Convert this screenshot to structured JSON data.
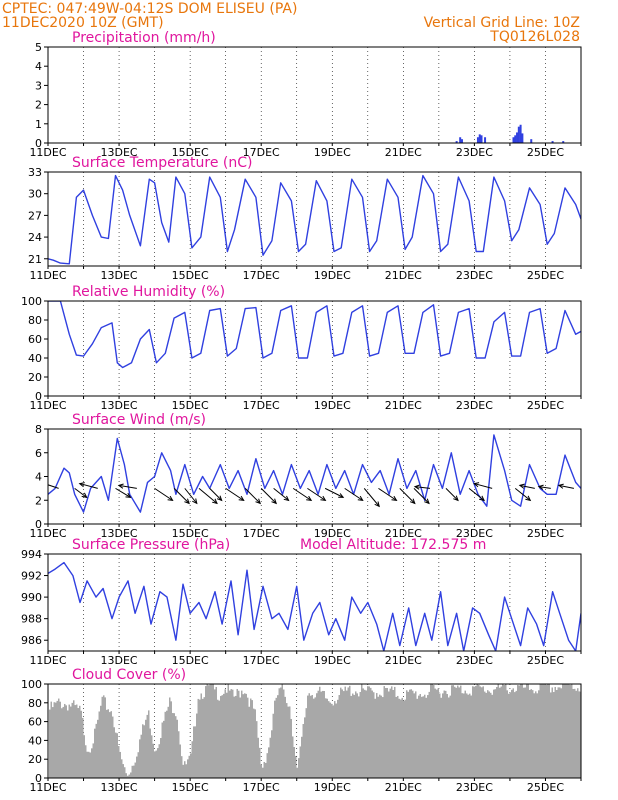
{
  "header": {
    "line1": "CPTEC:   047:49W-04:12S   DOM ELISEU (PA)",
    "line2": "11DEC2020 10Z (GMT)",
    "right1": "Vertical Grid Line: 10Z",
    "right2": "TQ0126L028"
  },
  "colors": {
    "header": "#e8760c",
    "title": "#e0169e",
    "line": "#3040e0",
    "cloud": "#a8a8a8",
    "grid": "#000000"
  },
  "chart_data": [
    {
      "type": "bar",
      "title": "Precipitation (mm/h)",
      "ylim": [
        0,
        5
      ],
      "yticks": [
        0,
        1,
        2,
        3,
        4,
        5
      ],
      "xlabels": [
        "11DEC",
        "13DEC",
        "15DEC",
        "17DEC",
        "19DEC",
        "21DEC",
        "23DEC",
        "25DEC"
      ],
      "x_start": "2020-12-11T10Z",
      "x_end": "2020-12-26T00Z",
      "grid": "dotted vertical lines at 10Z daily",
      "bars": [
        {
          "day": 11.0,
          "value": 0.02
        },
        {
          "day": 22.5,
          "value": 0.1
        },
        {
          "day": 22.6,
          "value": 0.3
        },
        {
          "day": 22.65,
          "value": 0.2
        },
        {
          "day": 23.1,
          "value": 0.3
        },
        {
          "day": 23.15,
          "value": 0.45
        },
        {
          "day": 23.2,
          "value": 0.4
        },
        {
          "day": 23.3,
          "value": 0.3
        },
        {
          "day": 24.1,
          "value": 0.3
        },
        {
          "day": 24.15,
          "value": 0.4
        },
        {
          "day": 24.2,
          "value": 0.55
        },
        {
          "day": 24.25,
          "value": 0.85
        },
        {
          "day": 24.3,
          "value": 0.95
        },
        {
          "day": 24.35,
          "value": 0.5
        },
        {
          "day": 24.6,
          "value": 0.2
        },
        {
          "day": 25.2,
          "value": 0.1
        },
        {
          "day": 25.5,
          "value": 0.1
        }
      ]
    },
    {
      "type": "line",
      "title": "Surface Temperature (nC)",
      "ylim": [
        20,
        33
      ],
      "yticks": [
        21,
        24,
        27,
        30,
        33
      ],
      "xlabels": [
        "11DEC",
        "13DEC",
        "15DEC",
        "17DEC",
        "19DEC",
        "21DEC",
        "23DEC",
        "25DEC"
      ],
      "series": [
        {
          "x": [
            11.0,
            11.15,
            11.35,
            11.6,
            11.8,
            12.0,
            12.25,
            12.5,
            12.7,
            12.9,
            13.1,
            13.3,
            13.6,
            13.85,
            14.0,
            14.2,
            14.4,
            14.6,
            14.85,
            15.05,
            15.3,
            15.55,
            15.85,
            16.05,
            16.25,
            16.55,
            16.85,
            17.05,
            17.3,
            17.55,
            17.85,
            18.05,
            18.25,
            18.55,
            18.85,
            19.05,
            19.25,
            19.55,
            19.85,
            20.05,
            20.25,
            20.55,
            20.85,
            21.05,
            21.25,
            21.55,
            21.85,
            22.05,
            22.25,
            22.55,
            22.85,
            23.05,
            23.25,
            23.55,
            23.85,
            24.05,
            24.25,
            24.55,
            24.85,
            25.05,
            25.25,
            25.55,
            25.85,
            26.0
          ],
          "values": [
            21.0,
            20.8,
            20.4,
            20.3,
            29.5,
            30.5,
            27.0,
            24.0,
            23.8,
            32.5,
            30.5,
            27.0,
            22.8,
            32.0,
            31.5,
            26.0,
            23.3,
            32.3,
            30.0,
            22.5,
            24.0,
            32.3,
            29.5,
            22.0,
            25.0,
            32.0,
            29.5,
            21.5,
            23.5,
            31.5,
            29.0,
            22.0,
            23.0,
            31.8,
            29.0,
            22.0,
            22.5,
            32.0,
            29.5,
            22.0,
            23.5,
            32.0,
            29.5,
            22.3,
            24.0,
            32.5,
            30.0,
            22.0,
            23.0,
            32.3,
            29.0,
            22.0,
            22.0,
            32.3,
            29.0,
            23.5,
            25.0,
            30.8,
            28.5,
            23.0,
            24.5,
            30.8,
            28.5,
            26.5
          ]
        }
      ]
    },
    {
      "type": "line",
      "title": "Relative Humidity (%)",
      "ylim": [
        0,
        100
      ],
      "yticks": [
        0,
        20,
        40,
        60,
        80,
        100
      ],
      "xlabels": [
        "11DEC",
        "13DEC",
        "15DEC",
        "17DEC",
        "19DEC",
        "21DEC",
        "23DEC",
        "25DEC"
      ],
      "series": [
        {
          "x": [
            11.0,
            11.35,
            11.6,
            11.8,
            12.0,
            12.25,
            12.5,
            12.8,
            12.95,
            13.1,
            13.35,
            13.6,
            13.85,
            14.05,
            14.3,
            14.55,
            14.85,
            15.05,
            15.3,
            15.55,
            15.85,
            16.05,
            16.3,
            16.55,
            16.85,
            17.05,
            17.3,
            17.55,
            17.85,
            18.05,
            18.3,
            18.55,
            18.85,
            19.05,
            19.3,
            19.55,
            19.85,
            20.05,
            20.3,
            20.55,
            20.85,
            21.05,
            21.3,
            21.55,
            21.85,
            22.05,
            22.3,
            22.55,
            22.85,
            23.05,
            23.3,
            23.55,
            23.85,
            24.05,
            24.3,
            24.55,
            24.85,
            25.05,
            25.3,
            25.55,
            25.85,
            26.0
          ],
          "values": [
            100,
            100,
            65,
            43,
            42,
            55,
            72,
            77,
            35,
            30,
            35,
            60,
            70,
            35,
            45,
            82,
            88,
            40,
            45,
            90,
            92,
            42,
            50,
            92,
            93,
            40,
            45,
            90,
            95,
            40,
            40,
            88,
            95,
            42,
            45,
            88,
            95,
            42,
            45,
            88,
            95,
            45,
            45,
            88,
            96,
            42,
            45,
            88,
            92,
            40,
            40,
            78,
            88,
            42,
            42,
            88,
            92,
            45,
            50,
            90,
            65,
            68
          ]
        }
      ]
    },
    {
      "type": "line",
      "title": "Surface Wind (m/s)",
      "ylim": [
        0,
        8
      ],
      "yticks": [
        0,
        2,
        4,
        6,
        8
      ],
      "xlabels": [
        "11DEC",
        "13DEC",
        "15DEC",
        "17DEC",
        "19DEC",
        "21DEC",
        "23DEC",
        "25DEC"
      ],
      "series": [
        {
          "x": [
            11.0,
            11.2,
            11.45,
            11.6,
            11.75,
            12.0,
            12.2,
            12.5,
            12.7,
            12.95,
            13.15,
            13.3,
            13.6,
            13.8,
            14.0,
            14.2,
            14.45,
            14.6,
            14.85,
            15.1,
            15.35,
            15.55,
            15.85,
            16.1,
            16.35,
            16.6,
            16.85,
            17.1,
            17.35,
            17.6,
            17.85,
            18.1,
            18.35,
            18.6,
            18.85,
            19.1,
            19.35,
            19.6,
            19.85,
            20.1,
            20.35,
            20.6,
            20.85,
            21.1,
            21.35,
            21.6,
            21.85,
            22.1,
            22.35,
            22.6,
            22.85,
            23.1,
            23.35,
            23.55,
            23.85,
            24.05,
            24.3,
            24.55,
            24.85,
            25.05,
            25.3,
            25.55,
            25.85,
            26.0
          ],
          "values": [
            2.5,
            3.0,
            4.7,
            4.3,
            2.5,
            1.0,
            3.0,
            4.0,
            2.0,
            7.2,
            5.0,
            2.5,
            1.0,
            3.5,
            4.0,
            6.0,
            4.5,
            2.5,
            5.0,
            2.5,
            4.0,
            3.0,
            5.0,
            3.0,
            4.5,
            2.5,
            5.5,
            3.0,
            4.5,
            2.5,
            5.0,
            3.0,
            4.5,
            2.5,
            5.0,
            3.0,
            4.5,
            2.5,
            5.0,
            3.5,
            4.5,
            2.5,
            5.5,
            3.0,
            4.5,
            2.0,
            5.0,
            3.0,
            6.0,
            2.5,
            4.5,
            2.5,
            1.5,
            7.5,
            4.5,
            2.0,
            1.5,
            5.0,
            3.0,
            2.5,
            2.5,
            5.8,
            3.5,
            3.0
          ]
        }
      ],
      "vectors": [
        {
          "day": 11.3,
          "u": -3.0,
          "v": 1.0
        },
        {
          "day": 11.75,
          "u": 2.0,
          "v": -1.5
        },
        {
          "day": 12.4,
          "u": -3.0,
          "v": 0.8
        },
        {
          "day": 12.9,
          "u": 2.5,
          "v": -1.5
        },
        {
          "day": 13.5,
          "u": -3.0,
          "v": 0.5
        },
        {
          "day": 14.0,
          "u": 3.0,
          "v": -2.0
        },
        {
          "day": 14.55,
          "u": 2.5,
          "v": -2.5
        },
        {
          "day": 14.85,
          "u": 2.0,
          "v": -2.5
        },
        {
          "day": 15.25,
          "u": 3.0,
          "v": -2.5
        },
        {
          "day": 15.55,
          "u": 2.0,
          "v": -2.0
        },
        {
          "day": 16.0,
          "u": 3.0,
          "v": -2.0
        },
        {
          "day": 16.55,
          "u": 2.5,
          "v": -2.5
        },
        {
          "day": 17.0,
          "u": 2.5,
          "v": -2.5
        },
        {
          "day": 17.35,
          "u": 2.5,
          "v": -2.0
        },
        {
          "day": 17.9,
          "u": 3.0,
          "v": -2.0
        },
        {
          "day": 18.3,
          "u": 3.0,
          "v": -2.0
        },
        {
          "day": 18.8,
          "u": 3.0,
          "v": -1.5
        },
        {
          "day": 19.35,
          "u": 3.0,
          "v": -2.0
        },
        {
          "day": 19.9,
          "u": 2.5,
          "v": -3.0
        },
        {
          "day": 20.3,
          "u": 3.0,
          "v": -2.0
        },
        {
          "day": 20.9,
          "u": 2.5,
          "v": -2.5
        },
        {
          "day": 21.3,
          "u": 2.5,
          "v": -2.5
        },
        {
          "day": 21.75,
          "u": -2.5,
          "v": 0.3
        },
        {
          "day": 22.2,
          "u": 2.0,
          "v": -2.0
        },
        {
          "day": 22.85,
          "u": 2.5,
          "v": -2.0
        },
        {
          "day": 23.5,
          "u": -3.0,
          "v": 0.8
        },
        {
          "day": 24.15,
          "u": 2.5,
          "v": -2.0
        },
        {
          "day": 24.7,
          "u": -2.5,
          "v": 0.5
        },
        {
          "day": 25.15,
          "u": -2.0,
          "v": 0.3
        },
        {
          "day": 25.8,
          "u": -2.5,
          "v": 0.5
        }
      ]
    },
    {
      "type": "line",
      "title": "Surface Pressure (hPa)",
      "subtitle": "Model Altitude: 172.575 m",
      "ylim": [
        985,
        994
      ],
      "yticks": [
        986,
        988,
        990,
        992,
        994
      ],
      "xlabels": [
        "11DEC",
        "13DEC",
        "15DEC",
        "17DEC",
        "19DEC",
        "21DEC",
        "23DEC",
        "25DEC"
      ],
      "series": [
        {
          "x": [
            11.0,
            11.2,
            11.45,
            11.7,
            11.9,
            12.1,
            12.35,
            12.55,
            12.8,
            13.0,
            13.25,
            13.45,
            13.7,
            13.9,
            14.15,
            14.35,
            14.6,
            14.8,
            15.0,
            15.25,
            15.45,
            15.7,
            15.9,
            16.15,
            16.35,
            16.6,
            16.8,
            17.05,
            17.3,
            17.5,
            17.75,
            18.0,
            18.2,
            18.45,
            18.65,
            18.9,
            19.1,
            19.35,
            19.55,
            19.8,
            20.0,
            20.25,
            20.45,
            20.7,
            20.9,
            21.15,
            21.35,
            21.6,
            21.8,
            22.05,
            22.25,
            22.5,
            22.7,
            22.95,
            23.15,
            23.4,
            23.6,
            23.85,
            24.05,
            24.3,
            24.5,
            24.75,
            24.95,
            25.2,
            25.4,
            25.65,
            25.85,
            26.0
          ],
          "values": [
            992.2,
            992.6,
            993.2,
            992.0,
            989.5,
            991.5,
            990.0,
            990.8,
            988.0,
            990.0,
            991.5,
            988.5,
            991.0,
            987.5,
            990.5,
            990.0,
            986.0,
            991.2,
            988.5,
            989.5,
            988.0,
            990.5,
            987.5,
            991.5,
            986.5,
            992.5,
            987.0,
            991.0,
            988.0,
            988.5,
            987.0,
            991.0,
            986.0,
            988.5,
            989.5,
            986.5,
            988.0,
            986.0,
            990.0,
            988.5,
            989.5,
            987.5,
            985.0,
            988.5,
            985.5,
            989.0,
            985.5,
            988.5,
            986.0,
            990.5,
            985.5,
            988.5,
            985.0,
            989.0,
            988.5,
            986.5,
            985.0,
            990.0,
            988.0,
            985.5,
            989.0,
            987.5,
            985.5,
            990.5,
            988.5,
            986.0,
            985.0,
            988.5
          ]
        }
      ]
    },
    {
      "type": "bar",
      "title": "Cloud Cover (%)",
      "ylim": [
        0,
        100
      ],
      "yticks": [
        0,
        20,
        40,
        60,
        80,
        100
      ],
      "xlabels": [
        "11DEC",
        "13DEC",
        "15DEC",
        "17DEC",
        "19DEC",
        "21DEC",
        "23DEC",
        "25DEC"
      ],
      "profile_x": [
        11.0,
        11.3,
        11.6,
        11.9,
        12.1,
        12.3,
        12.5,
        12.8,
        13.0,
        13.2,
        13.4,
        13.6,
        13.8,
        14.0,
        14.2,
        14.4,
        14.6,
        14.8,
        15.0,
        15.2,
        15.5,
        15.8,
        16.0,
        16.2,
        16.5,
        16.8,
        17.0,
        17.2,
        17.4,
        17.6,
        17.8,
        18.0,
        18.3,
        18.6,
        18.9,
        19.2,
        19.5,
        20.0,
        20.5,
        21.0,
        21.5,
        22.0,
        22.5,
        23.0,
        23.5,
        24.0,
        24.5,
        25.0,
        25.5,
        26.0
      ],
      "profile_values": [
        72,
        80,
        78,
        70,
        30,
        45,
        82,
        70,
        25,
        2,
        18,
        45,
        70,
        30,
        55,
        80,
        72,
        10,
        20,
        88,
        96,
        90,
        96,
        85,
        96,
        70,
        10,
        35,
        85,
        96,
        75,
        5,
        92,
        90,
        82,
        88,
        94,
        91,
        92,
        88,
        90,
        93,
        94,
        95,
        94,
        96,
        95,
        96,
        98,
        97
      ]
    }
  ]
}
